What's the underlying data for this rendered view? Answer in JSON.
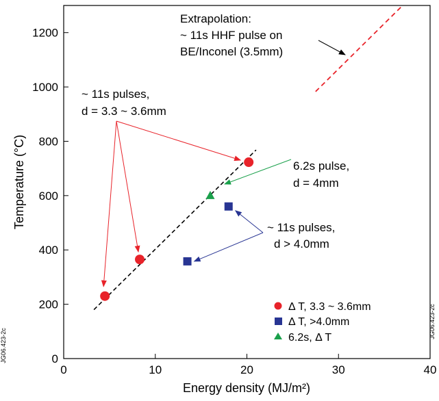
{
  "chart_data": {
    "type": "scatter",
    "xlabel": "Energy density (MJ/m²)",
    "ylabel": "Temperature (°C)",
    "xlim": [
      0,
      40
    ],
    "ylim": [
      0,
      1300
    ],
    "xticks": [
      0,
      10,
      20,
      30,
      40
    ],
    "yticks": [
      0,
      200,
      400,
      600,
      800,
      1000,
      1200
    ],
    "grid": false,
    "legend_position": "bottom-right",
    "series": [
      {
        "name": "Δ T, 3.3 ~ 3.6mm",
        "marker": "circle",
        "color": "#e8232a",
        "points": [
          {
            "x": 4.5,
            "y": 230
          },
          {
            "x": 8.3,
            "y": 365
          },
          {
            "x": 20.2,
            "y": 723
          }
        ]
      },
      {
        "name": "Δ T, >4.0mm",
        "marker": "square",
        "color": "#283593",
        "points": [
          {
            "x": 13.5,
            "y": 358
          },
          {
            "x": 18.0,
            "y": 560
          }
        ]
      },
      {
        "name": "6.2s, Δ T",
        "marker": "triangle",
        "color": "#1aa04b",
        "points": [
          {
            "x": 16.0,
            "y": 600
          }
        ]
      }
    ],
    "lines": [
      {
        "kind": "fit",
        "style": "dashed",
        "color": "#000000",
        "from": {
          "x": 3.3,
          "y": 180
        },
        "to": {
          "x": 21.0,
          "y": 768
        }
      },
      {
        "kind": "extrapolation",
        "style": "dashed",
        "color": "#e8232a",
        "from": {
          "x": 27.5,
          "y": 983
        },
        "to": {
          "x": 37.0,
          "y": 1300
        }
      }
    ],
    "annotations": [
      {
        "id": "ann1",
        "lines": [
          "~ 11s pulses,",
          "d = 3.3 ~ 3.6mm"
        ]
      },
      {
        "id": "ann2",
        "lines": [
          "6.2s pulse,",
          "d = 4mm"
        ]
      },
      {
        "id": "ann3",
        "lines": [
          "~ 11s pulses,",
          "d > 4.0mm"
        ]
      },
      {
        "id": "ann4",
        "lines": [
          "Extrapolation:",
          "~ 11s HHF pulse on",
          "BE/Inconel (3.5mm)"
        ]
      }
    ],
    "side_labels": [
      "JG06.423-2c",
      "JG06.423-2c"
    ]
  }
}
